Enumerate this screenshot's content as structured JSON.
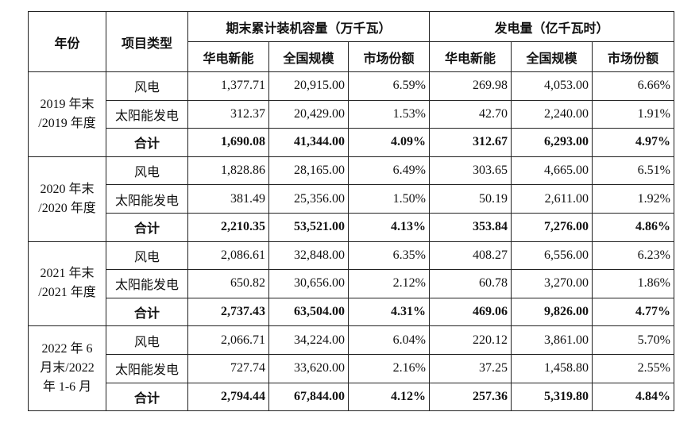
{
  "header": {
    "year": "年份",
    "type": "项目类型",
    "groups": [
      "期末累计装机容量（万千瓦）",
      "发电量（亿千瓦时）"
    ],
    "columns": [
      "华电新能",
      "全国规模",
      "市场份额",
      "华电新能",
      "全国规模",
      "市场份额"
    ]
  },
  "table": {
    "groups": [
      {
        "year": [
          "2019 年末",
          "/2019 年度"
        ],
        "rows": [
          {
            "type": "风电",
            "cells": [
              "1,377.71",
              "20,915.00",
              "6.59%",
              "269.98",
              "4,053.00",
              "6.66%"
            ]
          },
          {
            "type": "太阳能发电",
            "cells": [
              "312.37",
              "20,429.00",
              "1.53%",
              "42.70",
              "2,240.00",
              "1.91%"
            ]
          },
          {
            "type": "合计",
            "cells": [
              "1,690.08",
              "41,344.00",
              "4.09%",
              "312.67",
              "6,293.00",
              "4.97%"
            ]
          }
        ]
      },
      {
        "year": [
          "2020 年末",
          "/2020 年度"
        ],
        "rows": [
          {
            "type": "风电",
            "cells": [
              "1,828.86",
              "28,165.00",
              "6.49%",
              "303.65",
              "4,665.00",
              "6.51%"
            ]
          },
          {
            "type": "太阳能发电",
            "cells": [
              "381.49",
              "25,356.00",
              "1.50%",
              "50.19",
              "2,611.00",
              "1.92%"
            ]
          },
          {
            "type": "合计",
            "cells": [
              "2,210.35",
              "53,521.00",
              "4.13%",
              "353.84",
              "7,276.00",
              "4.86%"
            ]
          }
        ]
      },
      {
        "year": [
          "2021 年末",
          "/2021 年度"
        ],
        "rows": [
          {
            "type": "风电",
            "cells": [
              "2,086.61",
              "32,848.00",
              "6.35%",
              "408.27",
              "6,556.00",
              "6.23%"
            ]
          },
          {
            "type": "太阳能发电",
            "cells": [
              "650.82",
              "30,656.00",
              "2.12%",
              "60.78",
              "3,270.00",
              "1.86%"
            ]
          },
          {
            "type": "合计",
            "cells": [
              "2,737.43",
              "63,504.00",
              "4.31%",
              "469.06",
              "9,826.00",
              "4.77%"
            ]
          }
        ]
      },
      {
        "year": [
          "2022 年 6",
          "月末/2022",
          "年 1-6 月"
        ],
        "rows": [
          {
            "type": "风电",
            "cells": [
              "2,066.71",
              "34,224.00",
              "6.04%",
              "220.12",
              "3,861.00",
              "5.70%"
            ]
          },
          {
            "type": "太阳能发电",
            "cells": [
              "727.74",
              "33,620.00",
              "2.16%",
              "37.25",
              "1,458.80",
              "2.55%"
            ]
          },
          {
            "type": "合计",
            "cells": [
              "2,794.44",
              "67,844.00",
              "4.12%",
              "257.36",
              "5,319.80",
              "4.84%"
            ]
          }
        ]
      }
    ]
  }
}
